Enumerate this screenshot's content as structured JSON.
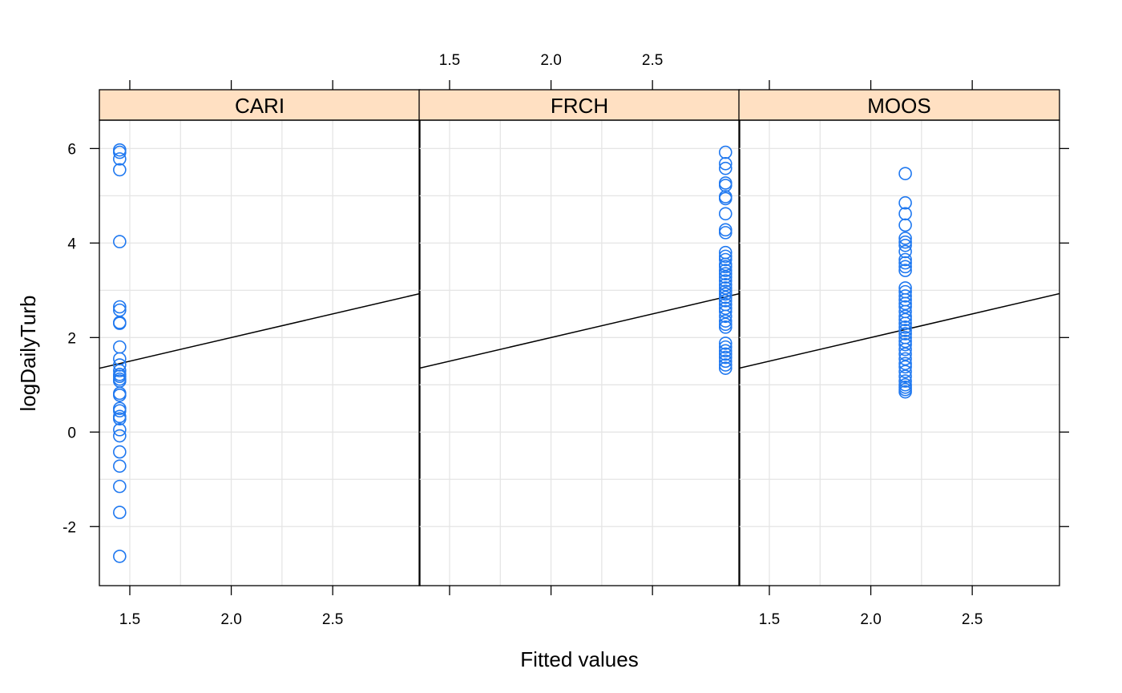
{
  "chart_data": {
    "type": "scatter",
    "xlabel": "Fitted values",
    "ylabel": "logDailyTurb",
    "xlim": [
      1.35,
      2.93
    ],
    "ylim": [
      -3.25,
      6.6
    ],
    "x_ticks": [
      1.5,
      2.0,
      2.5
    ],
    "x_tick_labels": [
      "1.5",
      "2.0",
      "2.5"
    ],
    "y_ticks": [
      -2,
      0,
      2,
      4,
      6
    ],
    "y_tick_labels": [
      "-2",
      "0",
      "2",
      "4",
      "6"
    ],
    "grid": true,
    "reference_line": {
      "intercept": 0,
      "slope": 1
    },
    "colors": {
      "points": "#1F78F0",
      "strip": "#FFE0C2",
      "grid": "#E5E5E5",
      "line": "#000000"
    },
    "panels": [
      {
        "name": "CARI",
        "x": 1.45,
        "y": [
          5.97,
          5.92,
          5.78,
          5.55,
          4.03,
          2.65,
          2.58,
          2.32,
          2.3,
          1.8,
          1.55,
          1.42,
          1.3,
          1.22,
          1.18,
          1.12,
          1.08,
          0.82,
          0.78,
          0.5,
          0.45,
          0.33,
          0.28,
          0.05,
          -0.08,
          -0.42,
          -0.72,
          -1.15,
          -1.7,
          -2.63
        ]
      },
      {
        "name": "FRCH",
        "x": 2.86,
        "y": [
          5.92,
          5.68,
          5.58,
          5.27,
          5.22,
          4.98,
          4.94,
          4.62,
          4.28,
          4.22,
          3.8,
          3.72,
          3.65,
          3.55,
          3.5,
          3.42,
          3.35,
          3.28,
          3.2,
          3.12,
          3.05,
          2.98,
          2.92,
          2.85,
          2.78,
          2.7,
          2.62,
          2.55,
          2.45,
          2.35,
          2.28,
          2.22,
          1.88,
          1.8,
          1.72,
          1.65,
          1.58,
          1.5,
          1.42,
          1.35
        ]
      },
      {
        "name": "MOOS",
        "x": 2.17,
        "y": [
          5.47,
          4.85,
          4.62,
          4.38,
          4.1,
          4.02,
          3.95,
          3.82,
          3.65,
          3.58,
          3.5,
          3.42,
          3.05,
          2.97,
          2.88,
          2.8,
          2.72,
          2.65,
          2.55,
          2.45,
          2.38,
          2.3,
          2.22,
          2.15,
          2.08,
          2.0,
          1.92,
          1.85,
          1.75,
          1.65,
          1.55,
          1.45,
          1.38,
          1.28,
          1.18,
          1.08,
          1.0,
          0.95,
          0.9,
          0.85
        ]
      }
    ]
  }
}
